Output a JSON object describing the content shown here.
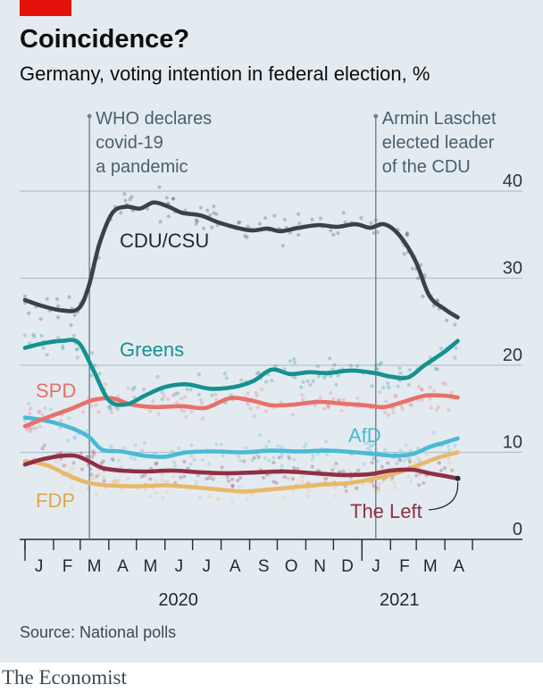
{
  "title": "Coincidence?",
  "subtitle": "Germany, voting intention in federal election, %",
  "source": "Source: National polls",
  "brand": "The Economist",
  "colors": {
    "background": "#e3ebf1",
    "accent": "#e3120b",
    "CDU/CSU": "#3a4246",
    "Greens": "#15918f",
    "SPD": "#e8706b",
    "AfD": "#4bbad4",
    "FDP": "#e9b86a",
    "The Left": "#8f2f45"
  },
  "chart_data": {
    "type": "line",
    "x_range": [
      "2020-01-01",
      "2021-04-30"
    ],
    "ylim": [
      0,
      40
    ],
    "y_ticks": [
      0,
      10,
      20,
      30,
      40
    ],
    "grid": true,
    "month_labels": [
      "J",
      "F",
      "M",
      "A",
      "M",
      "J",
      "J",
      "A",
      "S",
      "O",
      "N",
      "D",
      "J",
      "F",
      "M",
      "A"
    ],
    "year_labels": [
      "2020",
      "2021"
    ],
    "annotations": [
      {
        "date": "2020-03-11",
        "text": [
          "WHO declares",
          "covid-19",
          "a pandemic"
        ]
      },
      {
        "date": "2021-01-16",
        "text": [
          "Armin Laschet",
          "elected leader",
          "of the CDU"
        ]
      }
    ],
    "series": [
      {
        "name": "CDU/CSU",
        "x": [
          "2020-01-01",
          "2020-01-20",
          "2020-02-10",
          "2020-02-28",
          "2020-03-10",
          "2020-03-22",
          "2020-04-05",
          "2020-04-20",
          "2020-05-05",
          "2020-05-20",
          "2020-06-05",
          "2020-06-20",
          "2020-07-10",
          "2020-08-01",
          "2020-09-01",
          "2020-09-20",
          "2020-10-05",
          "2020-10-25",
          "2020-11-15",
          "2020-12-05",
          "2020-12-25",
          "2021-01-10",
          "2021-01-25",
          "2021-02-10",
          "2021-02-28",
          "2021-03-15",
          "2021-03-31",
          "2021-04-15"
        ],
        "values": [
          27.5,
          26.8,
          26.3,
          26.5,
          29,
          34,
          37.5,
          38.2,
          38,
          38.7,
          38.2,
          37.5,
          37.2,
          36.3,
          35.5,
          35.7,
          35.4,
          35.8,
          36.1,
          35.9,
          36.2,
          35.8,
          36.2,
          35,
          32,
          28,
          26.5,
          25.5
        ]
      },
      {
        "name": "Greens",
        "x": [
          "2020-01-01",
          "2020-01-20",
          "2020-02-10",
          "2020-02-28",
          "2020-03-15",
          "2020-04-01",
          "2020-04-20",
          "2020-05-10",
          "2020-06-01",
          "2020-06-25",
          "2020-07-20",
          "2020-08-15",
          "2020-09-05",
          "2020-09-25",
          "2020-10-15",
          "2020-11-05",
          "2020-11-25",
          "2020-12-20",
          "2021-01-15",
          "2021-02-01",
          "2021-02-20",
          "2021-03-10",
          "2021-03-31",
          "2021-04-15"
        ],
        "values": [
          22,
          22.5,
          22.8,
          22.6,
          19.5,
          16,
          15.5,
          16.5,
          17.5,
          17.8,
          17.3,
          17.5,
          18.2,
          19.5,
          19,
          19.2,
          19.1,
          19.4,
          19.1,
          18.7,
          18.6,
          20,
          21.5,
          22.8
        ]
      },
      {
        "name": "SPD",
        "x": [
          "2020-01-01",
          "2020-01-25",
          "2020-02-20",
          "2020-03-15",
          "2020-04-05",
          "2020-04-25",
          "2020-05-20",
          "2020-06-20",
          "2020-07-15",
          "2020-08-10",
          "2020-09-01",
          "2020-09-25",
          "2020-10-20",
          "2020-11-15",
          "2020-12-10",
          "2021-01-05",
          "2021-01-25",
          "2021-02-15",
          "2021-03-10",
          "2021-03-31",
          "2021-04-15"
        ],
        "values": [
          13,
          14,
          15,
          16,
          16.2,
          15.5,
          15.2,
          15.3,
          15.1,
          16.2,
          16,
          15.4,
          15.5,
          15.8,
          15.6,
          15.4,
          15.2,
          15.8,
          16.5,
          16.5,
          16.3
        ]
      },
      {
        "name": "AfD",
        "x": [
          "2020-01-01",
          "2020-01-25",
          "2020-02-20",
          "2020-03-10",
          "2020-03-25",
          "2020-04-15",
          "2020-05-10",
          "2020-06-01",
          "2020-06-25",
          "2020-07-25",
          "2020-08-25",
          "2020-09-25",
          "2020-10-25",
          "2020-11-25",
          "2020-12-25",
          "2021-01-15",
          "2021-02-05",
          "2021-02-25",
          "2021-03-15",
          "2021-03-31",
          "2021-04-15"
        ],
        "values": [
          14,
          13.6,
          12.8,
          11.8,
          10.3,
          10.1,
          9.6,
          9.5,
          10,
          10.1,
          10,
          10.2,
          10.1,
          10.2,
          10,
          9.8,
          9.6,
          9.8,
          10.6,
          11.1,
          11.6
        ]
      },
      {
        "name": "FDP",
        "x": [
          "2020-01-01",
          "2020-01-25",
          "2020-02-20",
          "2020-03-10",
          "2020-04-01",
          "2020-05-01",
          "2020-06-01",
          "2020-07-01",
          "2020-08-01",
          "2020-08-25",
          "2020-09-20",
          "2020-10-20",
          "2020-11-20",
          "2020-12-20",
          "2021-01-15",
          "2021-02-10",
          "2021-03-05",
          "2021-03-25",
          "2021-04-15"
        ],
        "values": [
          9,
          8.5,
          7.2,
          6.5,
          6.2,
          6.1,
          6.2,
          6,
          5.7,
          5.5,
          5.7,
          6,
          6.3,
          6.5,
          7,
          7.7,
          8.6,
          9.4,
          10
        ]
      },
      {
        "name": "The Left",
        "x": [
          "2020-01-01",
          "2020-01-20",
          "2020-02-10",
          "2020-02-25",
          "2020-03-10",
          "2020-03-25",
          "2020-04-15",
          "2020-05-10",
          "2020-06-10",
          "2020-07-10",
          "2020-08-10",
          "2020-09-10",
          "2020-10-10",
          "2020-11-10",
          "2020-12-10",
          "2021-01-10",
          "2021-02-01",
          "2021-02-25",
          "2021-03-15",
          "2021-03-31",
          "2021-04-15"
        ],
        "values": [
          8.6,
          9.2,
          9.6,
          9.6,
          9,
          8.2,
          7.9,
          7.8,
          7.9,
          7.7,
          7.6,
          7.7,
          7.8,
          7.6,
          7.4,
          7.5,
          7.9,
          8,
          7.6,
          7.3,
          7
        ]
      }
    ],
    "series_labels": {
      "CDU/CSU": "CDU/CSU",
      "Greens": "Greens",
      "SPD": "SPD",
      "AfD": "AfD",
      "FDP": "FDP",
      "The Left": "The Left"
    }
  }
}
